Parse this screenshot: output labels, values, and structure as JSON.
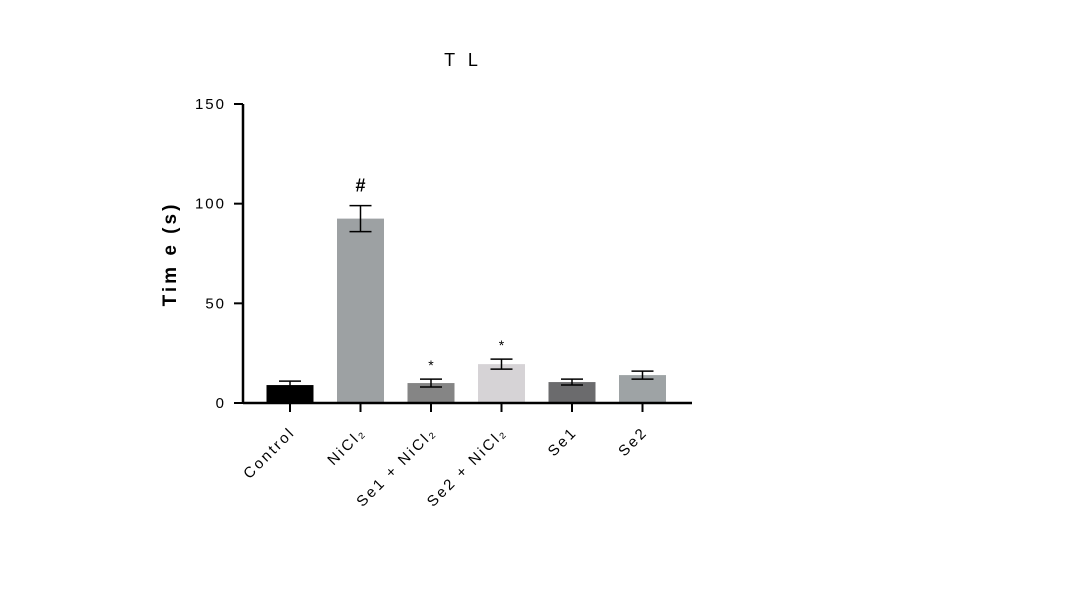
{
  "chart_data": {
    "type": "bar",
    "title": "T L",
    "ylabel": "Tim e (s)",
    "xlabel": "",
    "ylim": [
      0,
      150
    ],
    "yticks": [
      0,
      50,
      100,
      150
    ],
    "categories": [
      "Control",
      "NiCl₂",
      "Se1 + NiCl₂",
      "Se2 + NiCl₂",
      "Se1",
      "Se2"
    ],
    "values": [
      9,
      92.5,
      10,
      19.5,
      10.5,
      14
    ],
    "errors": [
      2,
      6.5,
      2,
      2.5,
      1.5,
      2
    ],
    "colors": [
      "#000000",
      "#9da1a3",
      "#858585",
      "#d6d3d6",
      "#6b6b6d",
      "#9ea3a5"
    ],
    "annotations": [
      "",
      "#",
      "*",
      "*",
      "",
      ""
    ],
    "grid": false,
    "legend": "none"
  }
}
